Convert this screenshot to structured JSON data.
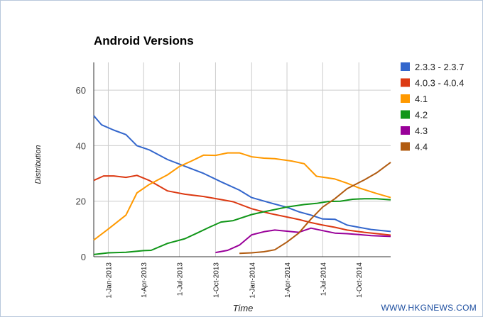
{
  "watermark": "WWW.HKGNEWS.COM",
  "chart_data": {
    "type": "line",
    "title": "Android Versions",
    "xlabel": "Time",
    "ylabel": "Distribution",
    "ylim": [
      0,
      70
    ],
    "yticks": [
      0,
      20,
      40,
      60
    ],
    "xlim": [
      "2012-11-25",
      "2014-12-21"
    ],
    "xticks": [
      "1-Jan-2013",
      "1-Apr-2013",
      "1-Jul-2013",
      "1-Oct-2013",
      "1-Jan-2014",
      "1-Apr-2014",
      "1-Jul-2014",
      "1-Oct-2014"
    ],
    "grid": true,
    "legend_position": "right",
    "series": [
      {
        "name": "2.3.3 - 2.3.7",
        "color": "#3366cc",
        "points": [
          [
            "2012-11-25",
            50.8
          ],
          [
            "2012-12-15",
            47.5
          ],
          [
            "2013-01-15",
            45.6
          ],
          [
            "2013-02-15",
            44.0
          ],
          [
            "2013-03-15",
            40.0
          ],
          [
            "2013-04-15",
            38.5
          ],
          [
            "2013-06-01",
            35.0
          ],
          [
            "2013-07-15",
            32.6
          ],
          [
            "2013-09-01",
            30.0
          ],
          [
            "2013-10-15",
            27.0
          ],
          [
            "2013-12-01",
            24.0
          ],
          [
            "2014-01-01",
            21.3
          ],
          [
            "2014-02-15",
            19.5
          ],
          [
            "2014-04-01",
            17.8
          ],
          [
            "2014-05-01",
            16.2
          ],
          [
            "2014-06-01",
            15.0
          ],
          [
            "2014-07-01",
            13.6
          ],
          [
            "2014-08-01",
            13.5
          ],
          [
            "2014-09-01",
            11.4
          ],
          [
            "2014-10-01",
            10.6
          ],
          [
            "2014-11-01",
            9.8
          ],
          [
            "2014-12-21",
            9.1
          ]
        ]
      },
      {
        "name": "4.0.3 - 4.0.4",
        "color": "#dc3912",
        "points": [
          [
            "2012-11-25",
            27.5
          ],
          [
            "2012-12-20",
            29.1
          ],
          [
            "2013-01-15",
            29.1
          ],
          [
            "2013-02-15",
            28.6
          ],
          [
            "2013-03-15",
            29.3
          ],
          [
            "2013-04-15",
            27.5
          ],
          [
            "2013-06-01",
            23.7
          ],
          [
            "2013-07-15",
            22.5
          ],
          [
            "2013-09-01",
            21.7
          ],
          [
            "2013-10-15",
            20.6
          ],
          [
            "2013-11-15",
            19.8
          ],
          [
            "2014-01-01",
            17.3
          ],
          [
            "2014-02-15",
            15.6
          ],
          [
            "2014-04-01",
            14.3
          ],
          [
            "2014-05-01",
            13.4
          ],
          [
            "2014-06-01",
            12.3
          ],
          [
            "2014-07-01",
            11.4
          ],
          [
            "2014-08-01",
            10.6
          ],
          [
            "2014-09-01",
            9.6
          ],
          [
            "2014-10-15",
            8.8
          ],
          [
            "2014-12-21",
            7.8
          ]
        ]
      },
      {
        "name": "4.1",
        "color": "#ff9900",
        "points": [
          [
            "2012-11-25",
            6.0
          ],
          [
            "2013-01-01",
            10.0
          ],
          [
            "2013-02-15",
            15.0
          ],
          [
            "2013-03-15",
            23.0
          ],
          [
            "2013-04-15",
            26.0
          ],
          [
            "2013-06-01",
            29.5
          ],
          [
            "2013-07-01",
            32.5
          ],
          [
            "2013-08-01",
            34.5
          ],
          [
            "2013-09-01",
            36.6
          ],
          [
            "2013-10-01",
            36.5
          ],
          [
            "2013-11-01",
            37.4
          ],
          [
            "2013-12-01",
            37.4
          ],
          [
            "2014-01-01",
            36.0
          ],
          [
            "2014-02-01",
            35.5
          ],
          [
            "2014-03-01",
            35.3
          ],
          [
            "2014-04-15",
            34.4
          ],
          [
            "2014-05-15",
            33.5
          ],
          [
            "2014-06-15",
            29.0
          ],
          [
            "2014-08-01",
            28.0
          ],
          [
            "2014-09-01",
            26.5
          ],
          [
            "2014-10-01",
            24.8
          ],
          [
            "2014-11-15",
            22.8
          ],
          [
            "2014-12-21",
            21.3
          ]
        ]
      },
      {
        "name": "4.2",
        "color": "#109618",
        "points": [
          [
            "2012-11-25",
            0.8
          ],
          [
            "2013-01-01",
            1.4
          ],
          [
            "2013-02-15",
            1.6
          ],
          [
            "2013-04-01",
            2.2
          ],
          [
            "2013-04-20",
            2.3
          ],
          [
            "2013-06-01",
            4.8
          ],
          [
            "2013-07-15",
            6.5
          ],
          [
            "2013-08-15",
            8.5
          ],
          [
            "2013-09-15",
            10.6
          ],
          [
            "2013-10-15",
            12.5
          ],
          [
            "2013-11-15",
            13.0
          ],
          [
            "2014-01-01",
            15.2
          ],
          [
            "2014-02-01",
            16.2
          ],
          [
            "2014-03-01",
            17.0
          ],
          [
            "2014-04-01",
            17.9
          ],
          [
            "2014-05-15",
            18.8
          ],
          [
            "2014-06-15",
            19.2
          ],
          [
            "2014-07-15",
            19.9
          ],
          [
            "2014-08-15",
            20.0
          ],
          [
            "2014-09-15",
            20.7
          ],
          [
            "2014-10-15",
            20.9
          ],
          [
            "2014-11-15",
            20.9
          ],
          [
            "2014-12-21",
            20.5
          ]
        ]
      },
      {
        "name": "4.3",
        "color": "#990099",
        "points": [
          [
            "2013-10-01",
            1.5
          ],
          [
            "2013-11-01",
            2.3
          ],
          [
            "2013-12-01",
            4.2
          ],
          [
            "2014-01-01",
            7.9
          ],
          [
            "2014-02-01",
            9.0
          ],
          [
            "2014-03-01",
            9.6
          ],
          [
            "2014-04-01",
            9.2
          ],
          [
            "2014-05-01",
            8.8
          ],
          [
            "2014-06-01",
            10.3
          ],
          [
            "2014-07-01",
            9.4
          ],
          [
            "2014-08-01",
            8.5
          ],
          [
            "2014-09-01",
            8.3
          ],
          [
            "2014-10-01",
            8.0
          ],
          [
            "2014-11-01",
            7.6
          ],
          [
            "2014-12-21",
            7.3
          ]
        ]
      },
      {
        "name": "4.4",
        "color": "#b15b10",
        "points": [
          [
            "2013-12-01",
            1.2
          ],
          [
            "2014-01-01",
            1.4
          ],
          [
            "2014-02-01",
            1.8
          ],
          [
            "2014-03-01",
            2.5
          ],
          [
            "2014-04-01",
            5.3
          ],
          [
            "2014-05-01",
            8.5
          ],
          [
            "2014-06-01",
            13.6
          ],
          [
            "2014-07-01",
            17.9
          ],
          [
            "2014-08-01",
            20.9
          ],
          [
            "2014-09-01",
            24.5
          ],
          [
            "2014-10-15",
            27.7
          ],
          [
            "2014-11-15",
            30.2
          ],
          [
            "2014-12-21",
            34.0
          ]
        ]
      }
    ]
  }
}
